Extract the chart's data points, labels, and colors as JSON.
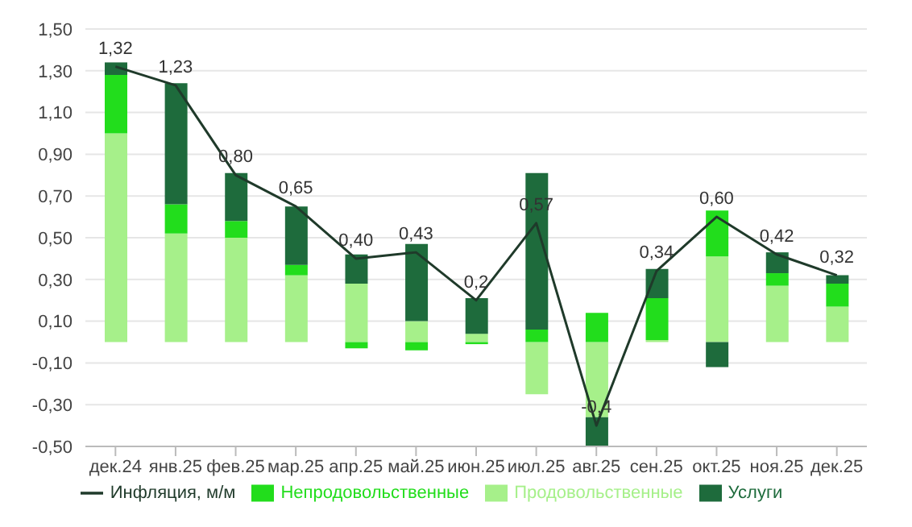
{
  "chart_data": {
    "type": "bar",
    "stacked": true,
    "categories": [
      "дек.24",
      "янв.25",
      "фев.25",
      "мар.25",
      "апр.25",
      "май.25",
      "июн.25",
      "июл.25",
      "авг.25",
      "сен.25",
      "окт.25",
      "ноя.25",
      "дек.25"
    ],
    "series": [
      {
        "name": "Продовольственные",
        "color": "#a6f08a",
        "values": [
          1.0,
          0.52,
          0.5,
          0.32,
          0.28,
          0.1,
          0.04,
          -0.25,
          -0.36,
          0.01,
          0.41,
          0.27,
          0.17
        ]
      },
      {
        "name": "Непродовольственные",
        "color": "#22dd1c",
        "values": [
          0.28,
          0.14,
          0.08,
          0.05,
          -0.03,
          -0.04,
          -0.01,
          0.06,
          0.14,
          0.2,
          0.22,
          0.06,
          0.11
        ]
      },
      {
        "name": "Услуги",
        "color": "#1e6b3c",
        "values": [
          0.06,
          0.58,
          0.23,
          0.28,
          0.14,
          0.37,
          0.17,
          0.75,
          -0.14,
          0.14,
          -0.12,
          0.1,
          0.04
        ]
      },
      {
        "name": "Инфляция, м/м",
        "type": "line",
        "color": "#1f3a2a",
        "values": [
          1.32,
          1.23,
          0.8,
          0.65,
          0.4,
          0.43,
          0.2,
          0.57,
          -0.4,
          0.34,
          0.6,
          0.42,
          0.32
        ],
        "value_labels": [
          "1,32",
          "1,23",
          "0,80",
          "0,65",
          "0,40",
          "0,43",
          "0,2",
          "0,57",
          "-0,4",
          "0,34",
          "0,60",
          "0,42",
          "0,32"
        ]
      }
    ],
    "ylim": [
      -0.5,
      1.5
    ],
    "yticks": [
      {
        "value": -0.5,
        "label": "-0,50"
      },
      {
        "value": -0.3,
        "label": "-0,30"
      },
      {
        "value": -0.1,
        "label": "-0,10"
      },
      {
        "value": 0.1,
        "label": "0,10"
      },
      {
        "value": 0.3,
        "label": "0,30"
      },
      {
        "value": 0.5,
        "label": "0,50"
      },
      {
        "value": 0.7,
        "label": "0,70"
      },
      {
        "value": 0.9,
        "label": "0,90"
      },
      {
        "value": 1.1,
        "label": "1,10"
      },
      {
        "value": 1.3,
        "label": "1,30"
      },
      {
        "value": 1.5,
        "label": "1,50"
      }
    ],
    "grid": "y",
    "legend": "bottom",
    "marker": "none"
  }
}
